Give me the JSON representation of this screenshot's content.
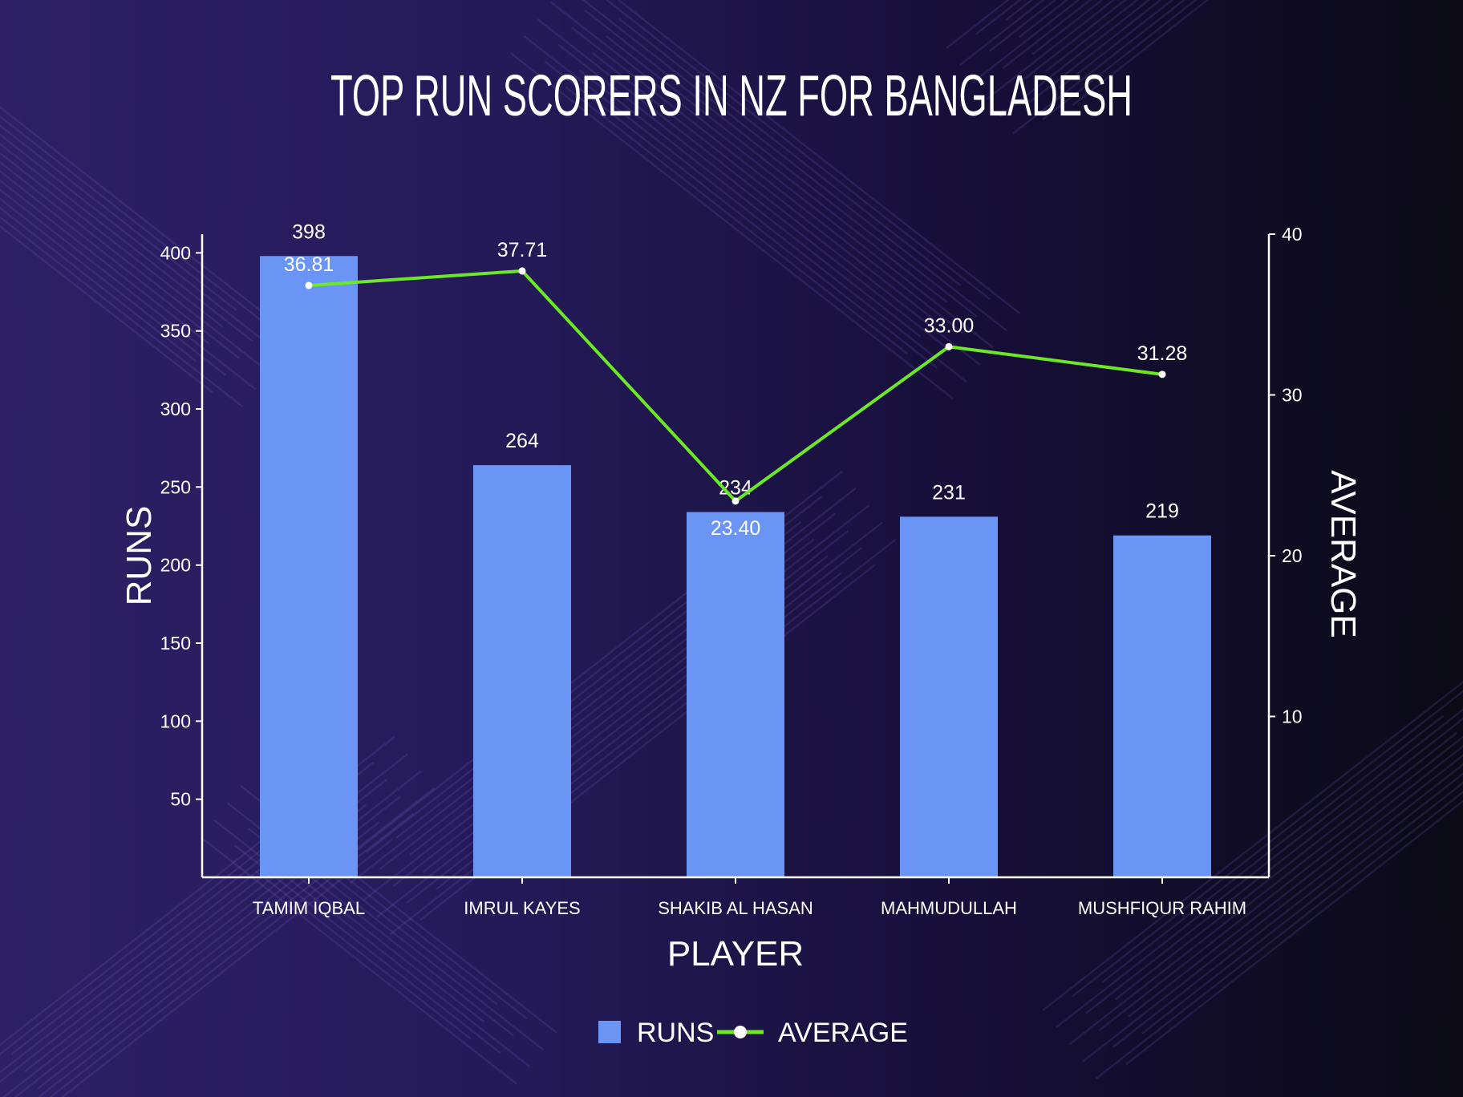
{
  "chart_data": {
    "type": "bar",
    "title": "TOP RUN SCORERS IN NZ FOR BANGLADESH",
    "xlabel": "PLAYER",
    "ylabel": "RUNS",
    "y2label": "AVERAGE",
    "categories": [
      "TAMIM IQBAL",
      "IMRUL KAYES",
      "SHAKIB AL HASAN",
      "MAHMUDULLAH",
      "MUSHFIQUR RAHIM"
    ],
    "series": [
      {
        "name": "RUNS",
        "type": "bar",
        "axis": "left",
        "color": "#6b95f5",
        "values": [
          398,
          264,
          234,
          231,
          219
        ],
        "labels": [
          "398",
          "264",
          "234",
          "231",
          "219"
        ]
      },
      {
        "name": "AVERAGE",
        "type": "line",
        "axis": "right",
        "color": "#6de825",
        "marker_color": "#ffffff",
        "values": [
          36.81,
          37.71,
          23.4,
          33.0,
          31.28
        ],
        "labels": [
          "36.81",
          "37.71",
          "23.40",
          "33.00",
          "31.28"
        ]
      }
    ],
    "ylim": [
      0,
      412
    ],
    "y_ticks": [
      50,
      100,
      150,
      200,
      250,
      300,
      350,
      400
    ],
    "y2lim": [
      0,
      40
    ],
    "y2_ticks": [
      10,
      20,
      30,
      40
    ],
    "grid": false,
    "legend_position": "bottom-center",
    "legend": [
      {
        "label": "RUNS",
        "kind": "bar-swatch"
      },
      {
        "label": "AVERAGE",
        "kind": "line-marker"
      }
    ],
    "colors": {
      "background": "#241a58",
      "bars": "#6b95f5",
      "line": "#6de825",
      "text": "#ffffff"
    }
  }
}
